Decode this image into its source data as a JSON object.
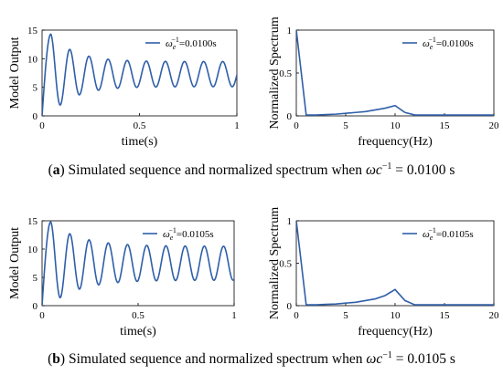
{
  "captions": [
    {
      "label": "a",
      "text": " Simulated sequence and normalized spectrum when ",
      "symbol": "ωc",
      "exp": "−1",
      "value": " = 0.0100 s"
    },
    {
      "label": "b",
      "text": " Simulated sequence and normalized spectrum when ",
      "symbol": "ωc",
      "exp": "−1",
      "value": " = 0.0105 s"
    }
  ],
  "chart_data": [
    {
      "id": "a-time",
      "type": "line",
      "xlabel": "time(s)",
      "ylabel": "Model Output",
      "xlim": [
        0,
        1
      ],
      "ylim": [
        0,
        15
      ],
      "xticks": [
        0,
        0.5,
        1
      ],
      "xtick_labels": [
        "0",
        "0.5",
        "1"
      ],
      "yticks": [
        0,
        5,
        10,
        15
      ],
      "ytick_labels": [
        "0",
        "5",
        "10",
        "15"
      ],
      "legend": {
        "symbol": "ω",
        "sub": "e",
        "sup": "−1",
        "value": "=0.0100s",
        "position": "top-right"
      },
      "color": "#2f5fa8",
      "signal": {
        "freq_hz": 10.2,
        "peak_time": 0.045,
        "first_peak": 14.3,
        "first_trough": 3.5,
        "steady_mean": 7.3,
        "steady_amp": 2.2,
        "decay_tau": 0.12,
        "rise_tau": 0.025
      }
    },
    {
      "id": "a-spectrum",
      "type": "line",
      "xlabel": "frequency(Hz)",
      "ylabel": "Normalized Spectrum",
      "xlim": [
        0,
        20
      ],
      "ylim": [
        0,
        1
      ],
      "xticks": [
        0,
        5,
        10,
        15,
        20
      ],
      "xtick_labels": [
        "0",
        "5",
        "10",
        "15",
        "20"
      ],
      "yticks": [
        0,
        0.5,
        1
      ],
      "ytick_labels": [
        "0",
        "0.5",
        "1"
      ],
      "legend": {
        "symbol": "ω",
        "sub": "e",
        "sup": "−1",
        "value": "=0.0100s",
        "position": "top-right"
      },
      "color": "#2f5fa8",
      "x": [
        0,
        1,
        2,
        3,
        4,
        5,
        6,
        7,
        8,
        9,
        10,
        11,
        12,
        13,
        14,
        15,
        16,
        17,
        18,
        19,
        20
      ],
      "y": [
        1.0,
        0.01,
        0.01,
        0.015,
        0.02,
        0.03,
        0.04,
        0.05,
        0.07,
        0.09,
        0.12,
        0.04,
        0.01,
        0.01,
        0.01,
        0.01,
        0.01,
        0.01,
        0.01,
        0.01,
        0.01
      ]
    },
    {
      "id": "b-time",
      "type": "line",
      "xlabel": "time(s)",
      "ylabel": "Model Output",
      "xlim": [
        0,
        1
      ],
      "ylim": [
        0,
        15
      ],
      "xticks": [
        0,
        0.5,
        1
      ],
      "xtick_labels": [
        "0",
        "0.5",
        "1"
      ],
      "yticks": [
        0,
        5,
        10,
        15
      ],
      "ytick_labels": [
        "0",
        "5",
        "10",
        "15"
      ],
      "legend": {
        "symbol": "ω",
        "sub": "e",
        "sup": "−1",
        "value": "=0.0105s",
        "position": "top-right"
      },
      "color": "#2f5fa8",
      "signal": {
        "freq_hz": 10.0,
        "peak_time": 0.045,
        "first_peak": 14.8,
        "first_trough": 2.5,
        "steady_mean": 7.5,
        "steady_amp": 3.0,
        "decay_tau": 0.15,
        "rise_tau": 0.025
      }
    },
    {
      "id": "b-spectrum",
      "type": "line",
      "xlabel": "frequency(Hz)",
      "ylabel": "Normalized Spectrum",
      "xlim": [
        0,
        20
      ],
      "ylim": [
        0,
        1
      ],
      "xticks": [
        0,
        5,
        10,
        15,
        20
      ],
      "xtick_labels": [
        "0",
        "5",
        "10",
        "15",
        "20"
      ],
      "yticks": [
        0,
        0.5,
        1
      ],
      "ytick_labels": [
        "0",
        "0.5",
        "1"
      ],
      "legend": {
        "symbol": "ω",
        "sub": "e",
        "sup": "−1",
        "value": "=0.0105s",
        "position": "top-right"
      },
      "color": "#2f5fa8",
      "x": [
        0,
        1,
        2,
        3,
        4,
        5,
        6,
        7,
        8,
        9,
        10,
        11,
        12,
        13,
        14,
        15,
        16,
        17,
        18,
        19,
        20
      ],
      "y": [
        1.0,
        0.01,
        0.01,
        0.015,
        0.02,
        0.03,
        0.04,
        0.06,
        0.08,
        0.12,
        0.19,
        0.06,
        0.01,
        0.01,
        0.01,
        0.01,
        0.01,
        0.01,
        0.01,
        0.01,
        0.01
      ]
    }
  ]
}
